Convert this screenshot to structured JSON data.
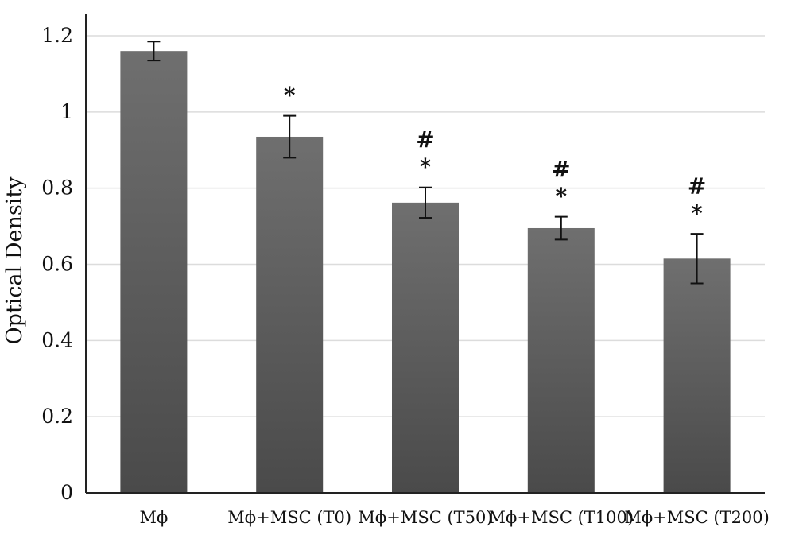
{
  "chart_data": {
    "type": "bar",
    "xlabel": "",
    "ylabel": "Optical Density",
    "ylim": [
      0,
      1.2
    ],
    "yticks": [
      "0",
      "0.2",
      "0.4",
      "0.6",
      "0.8",
      "1",
      "1.2"
    ],
    "grid": true,
    "categories": [
      "Mϕ",
      "Mϕ+MSC (T0)",
      "Mϕ+MSC (T50)",
      "Mϕ+MSC (T100)",
      "Mϕ+MSC (T200)"
    ],
    "values": [
      1.16,
      0.935,
      0.762,
      0.695,
      0.615
    ],
    "error": [
      0.025,
      0.055,
      0.04,
      0.03,
      0.065
    ],
    "annotations": [
      [],
      [
        "*"
      ],
      [
        "#",
        "*"
      ],
      [
        "#",
        "*"
      ],
      [
        "#",
        "*"
      ]
    ],
    "colors": {
      "bar_top": "#6f6f6f",
      "bar_bottom": "#4a4a4a",
      "grid": "#dcdcdc",
      "axis": "#222222"
    }
  }
}
